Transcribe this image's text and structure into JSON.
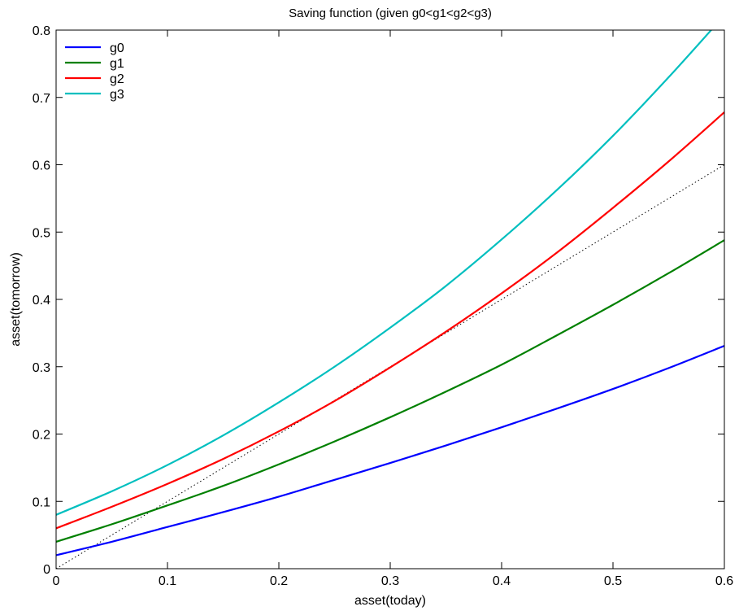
{
  "chart_data": {
    "type": "line",
    "title": "Saving function (given g0<g1<g2<g3)",
    "xlabel": "asset(today)",
    "ylabel": "asset(tomorrow)",
    "xlim": [
      0,
      0.6
    ],
    "ylim": [
      0,
      0.8
    ],
    "xticks": [
      0,
      0.1,
      0.2,
      0.3,
      0.4,
      0.5,
      0.6
    ],
    "yticks": [
      0,
      0.1,
      0.2,
      0.3,
      0.4,
      0.5,
      0.6,
      0.7,
      0.8
    ],
    "grid": false,
    "legend": "top-left",
    "x": [
      0,
      0.05,
      0.1,
      0.15,
      0.2,
      0.25,
      0.3,
      0.35,
      0.4,
      0.45,
      0.5,
      0.55,
      0.6
    ],
    "series": [
      {
        "name": "g0",
        "color": "#0000ff",
        "values": [
          0.02,
          0.04,
          0.062,
          0.084,
          0.107,
          0.132,
          0.157,
          0.183,
          0.21,
          0.238,
          0.267,
          0.298,
          0.331
        ]
      },
      {
        "name": "g1",
        "color": "#008000",
        "values": [
          0.04,
          0.066,
          0.094,
          0.123,
          0.155,
          0.189,
          0.225,
          0.263,
          0.303,
          0.347,
          0.392,
          0.439,
          0.488
        ]
      },
      {
        "name": "g2",
        "color": "#ff0000",
        "values": [
          0.06,
          0.092,
          0.126,
          0.163,
          0.204,
          0.249,
          0.299,
          0.352,
          0.409,
          0.47,
          0.536,
          0.605,
          0.678
        ]
      },
      {
        "name": "g3",
        "color": "#00bfbf",
        "values": [
          0.08,
          0.115,
          0.154,
          0.198,
          0.247,
          0.3,
          0.358,
          0.42,
          0.489,
          0.563,
          0.643,
          0.73,
          0.822
        ]
      }
    ],
    "reference_line": {
      "style": "dotted",
      "color": "#000000",
      "x": [
        0,
        0.6
      ],
      "y": [
        0,
        0.6
      ]
    }
  }
}
